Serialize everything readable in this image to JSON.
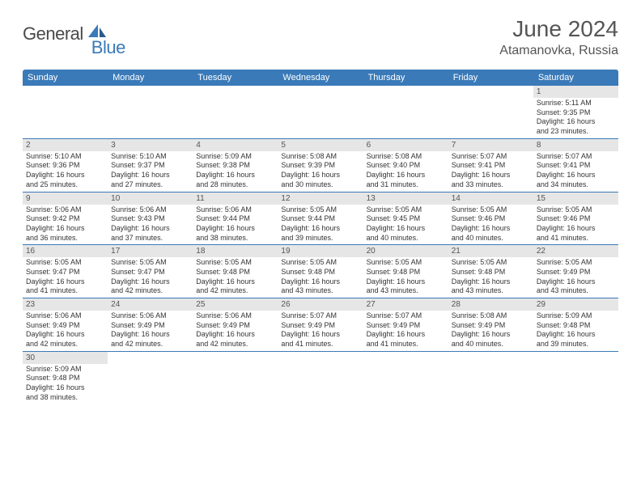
{
  "logo": {
    "text1": "General",
    "text2": "Blue",
    "color1": "#4a4a4a",
    "color2": "#3a7ab8"
  },
  "title": "June 2024",
  "location": "Atamanovka, Russia",
  "header_bg": "#3a7ab8",
  "header_fg": "#ffffff",
  "daynum_bg": "#e6e6e6",
  "border_color": "#3a7ab8",
  "days": [
    "Sunday",
    "Monday",
    "Tuesday",
    "Wednesday",
    "Thursday",
    "Friday",
    "Saturday"
  ],
  "cells": [
    {
      "n": "",
      "empty": true
    },
    {
      "n": "",
      "empty": true
    },
    {
      "n": "",
      "empty": true
    },
    {
      "n": "",
      "empty": true
    },
    {
      "n": "",
      "empty": true
    },
    {
      "n": "",
      "empty": true
    },
    {
      "n": "1",
      "sr": "Sunrise: 5:11 AM",
      "ss": "Sunset: 9:35 PM",
      "dl1": "Daylight: 16 hours",
      "dl2": "and 23 minutes."
    },
    {
      "n": "2",
      "sr": "Sunrise: 5:10 AM",
      "ss": "Sunset: 9:36 PM",
      "dl1": "Daylight: 16 hours",
      "dl2": "and 25 minutes."
    },
    {
      "n": "3",
      "sr": "Sunrise: 5:10 AM",
      "ss": "Sunset: 9:37 PM",
      "dl1": "Daylight: 16 hours",
      "dl2": "and 27 minutes."
    },
    {
      "n": "4",
      "sr": "Sunrise: 5:09 AM",
      "ss": "Sunset: 9:38 PM",
      "dl1": "Daylight: 16 hours",
      "dl2": "and 28 minutes."
    },
    {
      "n": "5",
      "sr": "Sunrise: 5:08 AM",
      "ss": "Sunset: 9:39 PM",
      "dl1": "Daylight: 16 hours",
      "dl2": "and 30 minutes."
    },
    {
      "n": "6",
      "sr": "Sunrise: 5:08 AM",
      "ss": "Sunset: 9:40 PM",
      "dl1": "Daylight: 16 hours",
      "dl2": "and 31 minutes."
    },
    {
      "n": "7",
      "sr": "Sunrise: 5:07 AM",
      "ss": "Sunset: 9:41 PM",
      "dl1": "Daylight: 16 hours",
      "dl2": "and 33 minutes."
    },
    {
      "n": "8",
      "sr": "Sunrise: 5:07 AM",
      "ss": "Sunset: 9:41 PM",
      "dl1": "Daylight: 16 hours",
      "dl2": "and 34 minutes."
    },
    {
      "n": "9",
      "sr": "Sunrise: 5:06 AM",
      "ss": "Sunset: 9:42 PM",
      "dl1": "Daylight: 16 hours",
      "dl2": "and 36 minutes."
    },
    {
      "n": "10",
      "sr": "Sunrise: 5:06 AM",
      "ss": "Sunset: 9:43 PM",
      "dl1": "Daylight: 16 hours",
      "dl2": "and 37 minutes."
    },
    {
      "n": "11",
      "sr": "Sunrise: 5:06 AM",
      "ss": "Sunset: 9:44 PM",
      "dl1": "Daylight: 16 hours",
      "dl2": "and 38 minutes."
    },
    {
      "n": "12",
      "sr": "Sunrise: 5:05 AM",
      "ss": "Sunset: 9:44 PM",
      "dl1": "Daylight: 16 hours",
      "dl2": "and 39 minutes."
    },
    {
      "n": "13",
      "sr": "Sunrise: 5:05 AM",
      "ss": "Sunset: 9:45 PM",
      "dl1": "Daylight: 16 hours",
      "dl2": "and 40 minutes."
    },
    {
      "n": "14",
      "sr": "Sunrise: 5:05 AM",
      "ss": "Sunset: 9:46 PM",
      "dl1": "Daylight: 16 hours",
      "dl2": "and 40 minutes."
    },
    {
      "n": "15",
      "sr": "Sunrise: 5:05 AM",
      "ss": "Sunset: 9:46 PM",
      "dl1": "Daylight: 16 hours",
      "dl2": "and 41 minutes."
    },
    {
      "n": "16",
      "sr": "Sunrise: 5:05 AM",
      "ss": "Sunset: 9:47 PM",
      "dl1": "Daylight: 16 hours",
      "dl2": "and 41 minutes."
    },
    {
      "n": "17",
      "sr": "Sunrise: 5:05 AM",
      "ss": "Sunset: 9:47 PM",
      "dl1": "Daylight: 16 hours",
      "dl2": "and 42 minutes."
    },
    {
      "n": "18",
      "sr": "Sunrise: 5:05 AM",
      "ss": "Sunset: 9:48 PM",
      "dl1": "Daylight: 16 hours",
      "dl2": "and 42 minutes."
    },
    {
      "n": "19",
      "sr": "Sunrise: 5:05 AM",
      "ss": "Sunset: 9:48 PM",
      "dl1": "Daylight: 16 hours",
      "dl2": "and 43 minutes."
    },
    {
      "n": "20",
      "sr": "Sunrise: 5:05 AM",
      "ss": "Sunset: 9:48 PM",
      "dl1": "Daylight: 16 hours",
      "dl2": "and 43 minutes."
    },
    {
      "n": "21",
      "sr": "Sunrise: 5:05 AM",
      "ss": "Sunset: 9:48 PM",
      "dl1": "Daylight: 16 hours",
      "dl2": "and 43 minutes."
    },
    {
      "n": "22",
      "sr": "Sunrise: 5:05 AM",
      "ss": "Sunset: 9:49 PM",
      "dl1": "Daylight: 16 hours",
      "dl2": "and 43 minutes."
    },
    {
      "n": "23",
      "sr": "Sunrise: 5:06 AM",
      "ss": "Sunset: 9:49 PM",
      "dl1": "Daylight: 16 hours",
      "dl2": "and 42 minutes."
    },
    {
      "n": "24",
      "sr": "Sunrise: 5:06 AM",
      "ss": "Sunset: 9:49 PM",
      "dl1": "Daylight: 16 hours",
      "dl2": "and 42 minutes."
    },
    {
      "n": "25",
      "sr": "Sunrise: 5:06 AM",
      "ss": "Sunset: 9:49 PM",
      "dl1": "Daylight: 16 hours",
      "dl2": "and 42 minutes."
    },
    {
      "n": "26",
      "sr": "Sunrise: 5:07 AM",
      "ss": "Sunset: 9:49 PM",
      "dl1": "Daylight: 16 hours",
      "dl2": "and 41 minutes."
    },
    {
      "n": "27",
      "sr": "Sunrise: 5:07 AM",
      "ss": "Sunset: 9:49 PM",
      "dl1": "Daylight: 16 hours",
      "dl2": "and 41 minutes."
    },
    {
      "n": "28",
      "sr": "Sunrise: 5:08 AM",
      "ss": "Sunset: 9:49 PM",
      "dl1": "Daylight: 16 hours",
      "dl2": "and 40 minutes."
    },
    {
      "n": "29",
      "sr": "Sunrise: 5:09 AM",
      "ss": "Sunset: 9:48 PM",
      "dl1": "Daylight: 16 hours",
      "dl2": "and 39 minutes."
    },
    {
      "n": "30",
      "sr": "Sunrise: 5:09 AM",
      "ss": "Sunset: 9:48 PM",
      "dl1": "Daylight: 16 hours",
      "dl2": "and 38 minutes.",
      "last": true
    },
    {
      "n": "",
      "empty": true,
      "last": true
    },
    {
      "n": "",
      "empty": true,
      "last": true
    },
    {
      "n": "",
      "empty": true,
      "last": true
    },
    {
      "n": "",
      "empty": true,
      "last": true
    },
    {
      "n": "",
      "empty": true,
      "last": true
    },
    {
      "n": "",
      "empty": true,
      "last": true
    }
  ]
}
